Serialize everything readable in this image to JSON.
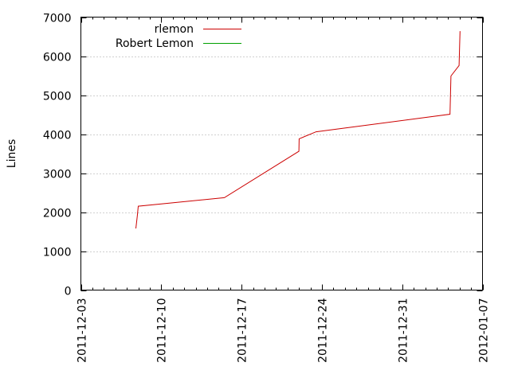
{
  "chart_data": {
    "type": "line",
    "xlabel": "",
    "ylabel": "Lines",
    "xlim": [
      "2011-12-03",
      "2012-01-07"
    ],
    "ylim": [
      0,
      7000
    ],
    "x_ticks": [
      "2011-12-03",
      "2011-12-10",
      "2011-12-17",
      "2011-12-24",
      "2011-12-31",
      "2012-01-07"
    ],
    "x_minor_tick_step_days": 1,
    "y_ticks": [
      0,
      1000,
      2000,
      3000,
      4000,
      5000,
      6000,
      7000
    ],
    "grid": true,
    "legend_position": "top-left",
    "series": [
      {
        "name": "rlemon",
        "color": "#cc0000",
        "points": [
          [
            "2011-12-07T19:00",
            1580
          ],
          [
            "2011-12-07T22:00",
            1900
          ],
          [
            "2011-12-08T00:00",
            2150
          ],
          [
            "2011-12-15T12:00",
            2370
          ],
          [
            "2011-12-22T00:00",
            3560
          ],
          [
            "2011-12-22T00:30",
            3880
          ],
          [
            "2011-12-23T12:00",
            4060
          ],
          [
            "2012-01-04T04:00",
            4510
          ],
          [
            "2012-01-04T06:00",
            5490
          ],
          [
            "2012-01-04T23:00",
            5760
          ],
          [
            "2012-01-05T01:00",
            6640
          ]
        ]
      },
      {
        "name": "Robert Lemon",
        "color": "#00a000",
        "points": []
      }
    ]
  }
}
